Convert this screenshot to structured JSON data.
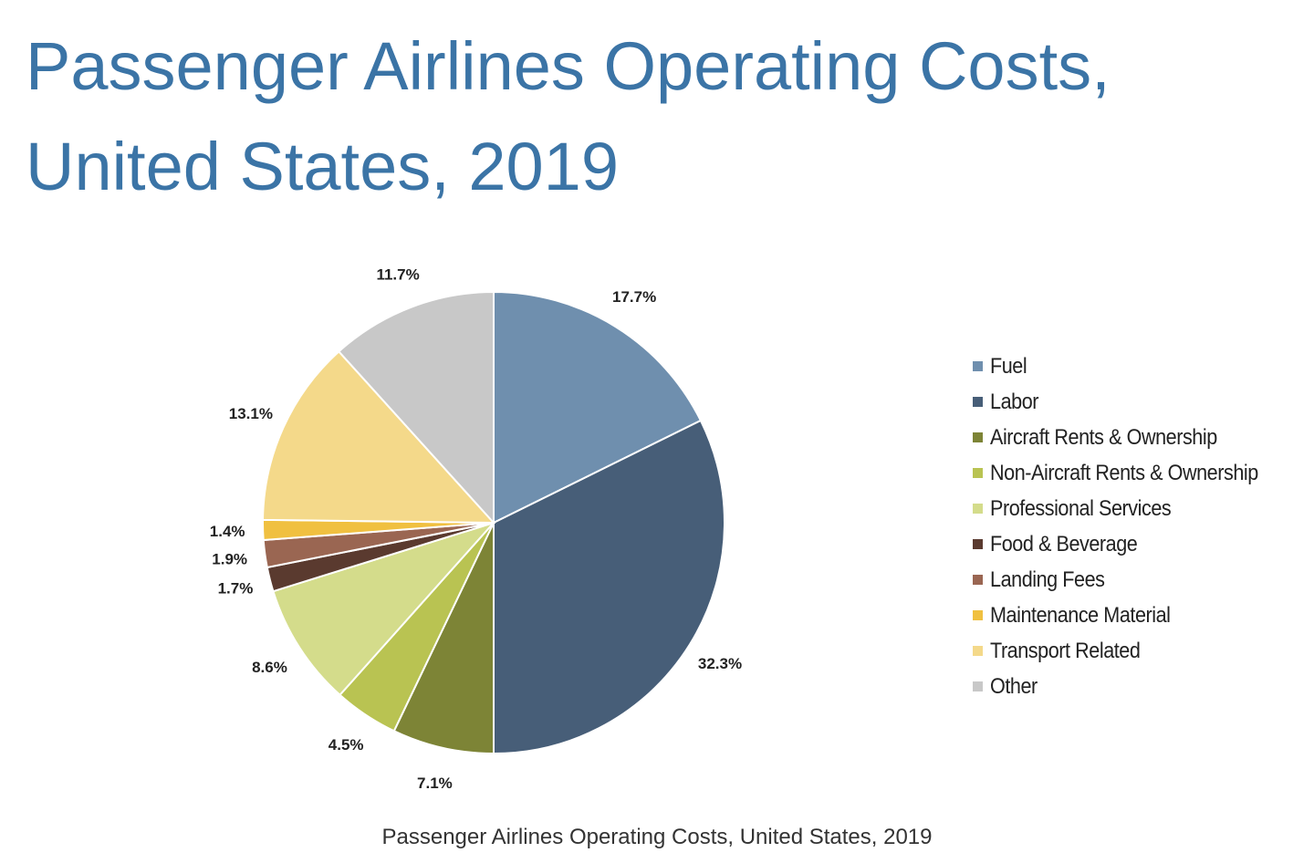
{
  "title": "Passenger Airlines Operating Costs, United States, 2019",
  "caption": "Passenger Airlines Operating Costs, United States, 2019",
  "chart_data": {
    "type": "pie",
    "title": "Passenger Airlines Operating Costs, United States, 2019",
    "start_angle": "12 o'clock",
    "direction": "clockwise",
    "legend_position": "right",
    "slices": [
      {
        "name": "Fuel",
        "value": 17.7,
        "label": "17.7%",
        "color": "#6f8fae"
      },
      {
        "name": "Labor",
        "value": 32.3,
        "label": "32.3%",
        "color": "#475e78"
      },
      {
        "name": "Aircraft Rents & Ownership",
        "value": 7.1,
        "label": "7.1%",
        "color": "#7d8436"
      },
      {
        "name": "Non-Aircraft Rents & Ownership",
        "value": 4.5,
        "label": "4.5%",
        "color": "#b9c352"
      },
      {
        "name": "Professional Services",
        "value": 8.6,
        "label": "8.6%",
        "color": "#d4dc8b"
      },
      {
        "name": "Food & Beverage",
        "value": 1.7,
        "label": "1.7%",
        "color": "#5a3a2f"
      },
      {
        "name": "Landing Fees",
        "value": 1.9,
        "label": "1.9%",
        "color": "#9a6652"
      },
      {
        "name": "Maintenance Material",
        "value": 1.4,
        "label": "1.4%",
        "color": "#f0c040"
      },
      {
        "name": "Transport Related",
        "value": 13.1,
        "label": "13.1%",
        "color": "#f4d98a"
      },
      {
        "name": "Other",
        "value": 11.7,
        "label": "11.7%",
        "color": "#c8c8c8"
      }
    ]
  }
}
